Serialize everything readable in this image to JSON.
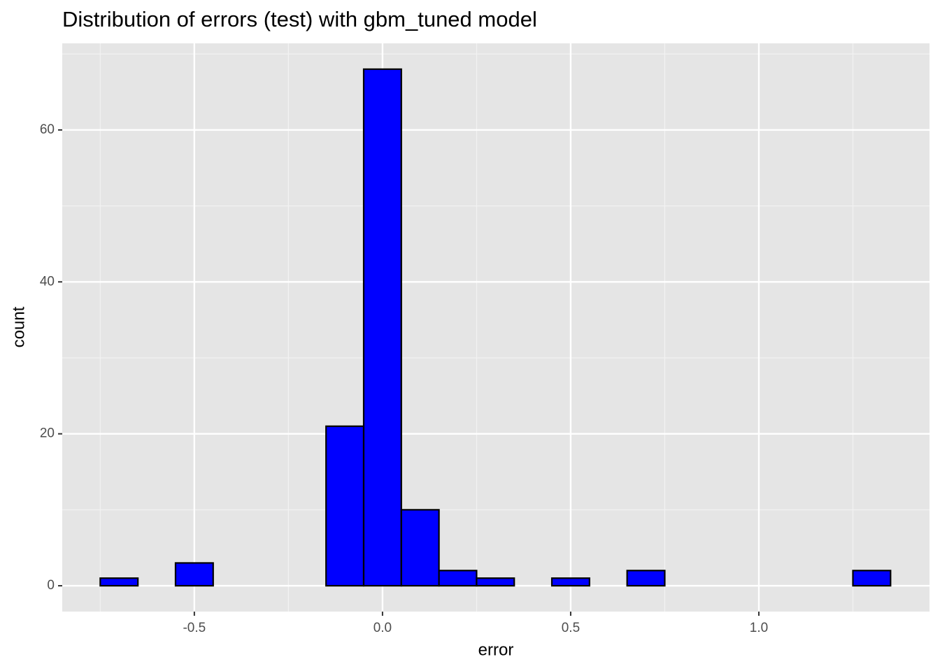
{
  "chart_data": {
    "type": "histogram",
    "title": "Distribution of errors (test) with gbm_tuned model",
    "x_label": "error",
    "y_label": "count",
    "bins": [
      -0.75,
      -0.65,
      -0.55,
      -0.45,
      -0.35,
      -0.25,
      -0.15,
      -0.05,
      0.05,
      0.15,
      0.25,
      0.35,
      0.45,
      0.55,
      0.65,
      0.75,
      0.85,
      0.95,
      1.05,
      1.15,
      1.25,
      1.35
    ],
    "values": [
      1,
      0,
      3,
      0,
      0,
      0,
      21,
      68,
      10,
      2,
      1,
      0,
      1,
      0,
      2,
      0,
      0,
      0,
      0,
      0,
      2
    ],
    "color": "#0000ff",
    "edge_color": "#000000",
    "xlim": [
      -0.851,
      1.4535
    ],
    "ylim": [
      -3.4,
      71.4
    ],
    "xticks": [
      -0.5,
      {
        "value": 0,
        "label": "0.0"
      },
      0.5,
      {
        "value": 1,
        "label": "1.0"
      }
    ],
    "yticks": [
      0,
      20,
      40,
      60
    ],
    "xminor": [
      -0.75,
      -0.25,
      0.25,
      0.75,
      1.25
    ],
    "yminor": [
      10,
      30,
      50,
      70
    ],
    "grid": true
  }
}
